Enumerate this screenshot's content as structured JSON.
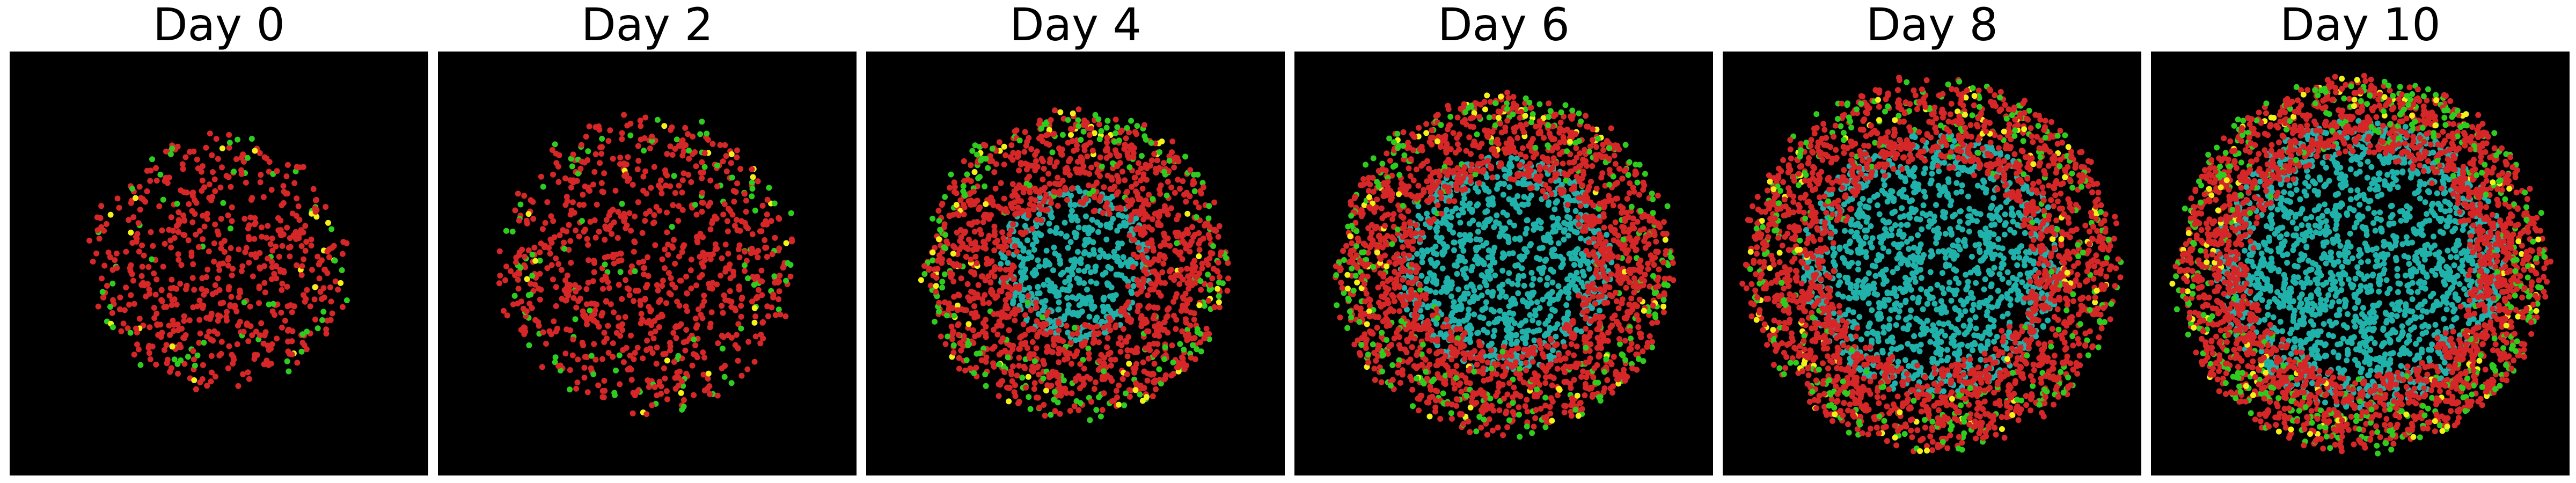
{
  "chart_data": {
    "type": "scatter",
    "description_free": true,
    "figure_layout": "1x6 panels",
    "background_color": "#000000",
    "point_colors": {
      "proliferative": "#d62728",
      "cycling": "#2ecc1f",
      "hypoxic": "#f2f21a",
      "necrotic": "#20b2aa"
    },
    "panels": [
      {
        "title": "Day 0",
        "outer_radius": 0.3,
        "core_radius": 0.0,
        "point_density": 1.0
      },
      {
        "title": "Day 2",
        "outer_radius": 0.35,
        "core_radius": 0.0,
        "point_density": 1.4
      },
      {
        "title": "Day 4",
        "outer_radius": 0.36,
        "core_radius": 0.17,
        "point_density": 2.4
      },
      {
        "title": "Day 6",
        "outer_radius": 0.4,
        "core_radius": 0.24,
        "point_density": 3.0
      },
      {
        "title": "Day 8",
        "outer_radius": 0.44,
        "core_radius": 0.29,
        "point_density": 3.4
      },
      {
        "title": "Day 10",
        "outer_radius": 0.44,
        "core_radius": 0.32,
        "point_density": 3.8
      }
    ],
    "xlabel": "",
    "ylabel": "",
    "grid": false,
    "legend": "none"
  }
}
